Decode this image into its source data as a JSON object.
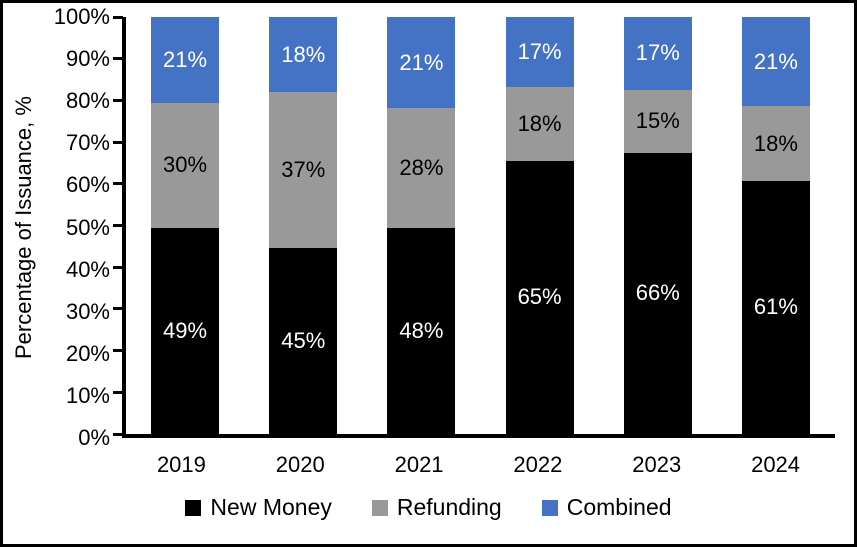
{
  "chart_data": {
    "type": "bar",
    "variant": "stacked-100-percent",
    "title": "",
    "xlabel": "",
    "ylabel": "Percentage of Issuance, %",
    "categories": [
      "2019",
      "2020",
      "2021",
      "2022",
      "2023",
      "2024"
    ],
    "series": [
      {
        "name": "New Money",
        "color": "#000000",
        "label_color": "#ffffff",
        "values": [
          49,
          45,
          48,
          65,
          66,
          61
        ],
        "drawn_heights": [
          49.5,
          44.5,
          49.3,
          65.5,
          67.5,
          60.7
        ]
      },
      {
        "name": "Refunding",
        "color": "#999999",
        "label_color": "#000000",
        "values": [
          30,
          37,
          28,
          18,
          15,
          18
        ],
        "drawn_heights": [
          29.8,
          37.5,
          28.8,
          17.8,
          15.1,
          17.9
        ]
      },
      {
        "name": "Combined",
        "color": "#4472c4",
        "label_color": "#ffffff",
        "values": [
          21,
          18,
          21,
          17,
          17,
          21
        ],
        "drawn_heights": [
          20.7,
          18.0,
          21.9,
          16.7,
          17.4,
          21.4
        ]
      }
    ],
    "value_suffix": "%",
    "y_axis": {
      "min": 0,
      "max": 100,
      "step": 10,
      "tick_suffix": "%"
    },
    "grid": false,
    "legend_position": "bottom"
  }
}
